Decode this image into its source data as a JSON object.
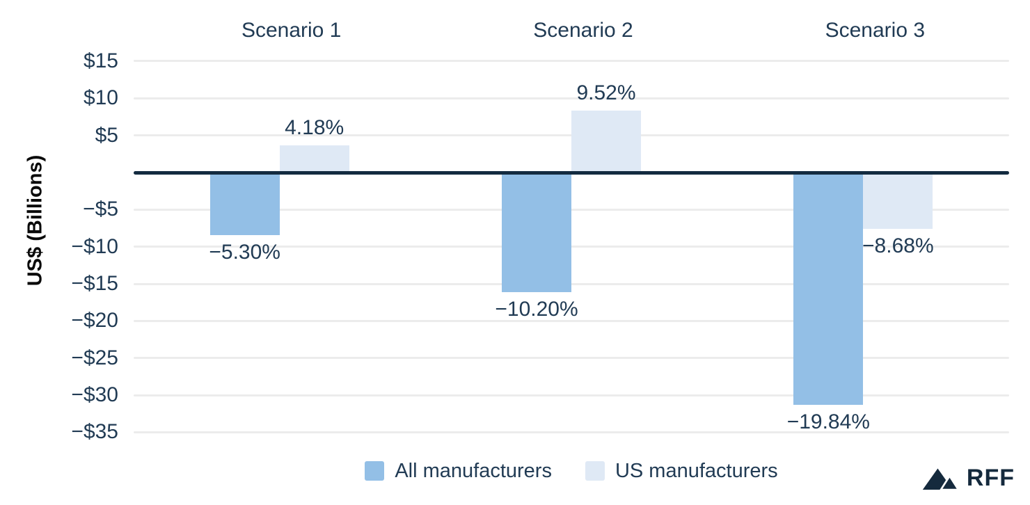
{
  "chart_data": {
    "type": "bar",
    "title": "",
    "categories": [
      "Scenario 1",
      "Scenario 2",
      "Scenario 3"
    ],
    "series": [
      {
        "name": "All manufacturers",
        "color": "#93bfe6",
        "values_usd_billions": [
          -8.4,
          -16.1,
          -31.3
        ],
        "data_labels": [
          "−5.30%",
          "−10.20%",
          "−19.84%"
        ]
      },
      {
        "name": "US manufacturers",
        "color": "#dfe9f5",
        "values_usd_billions": [
          3.7,
          8.3,
          -7.6
        ],
        "data_labels": [
          "4.18%",
          "9.52%",
          "−8.68%"
        ]
      }
    ],
    "ylabel": "US$ (Billions)",
    "y_ticks": [
      {
        "value": 15,
        "label": "$15"
      },
      {
        "value": 10,
        "label": "$10"
      },
      {
        "value": 5,
        "label": "$5"
      },
      {
        "value": 0,
        "label": ""
      },
      {
        "value": -5,
        "label": "−$5"
      },
      {
        "value": -10,
        "label": "−$10"
      },
      {
        "value": -15,
        "label": "−$15"
      },
      {
        "value": -20,
        "label": "−$20"
      },
      {
        "value": -25,
        "label": "−$25"
      },
      {
        "value": -30,
        "label": "−$30"
      },
      {
        "value": -35,
        "label": "−$35"
      }
    ],
    "ylim": [
      -37,
      17
    ],
    "grid": true,
    "legend_position": "bottom"
  },
  "colors": {
    "axis_line": "#132b40",
    "gridline": "#ececec",
    "text": "#213b54",
    "logo": "#152a3d"
  },
  "branding": {
    "logo_text": "RFF",
    "logo_icon": "mountains-icon"
  }
}
